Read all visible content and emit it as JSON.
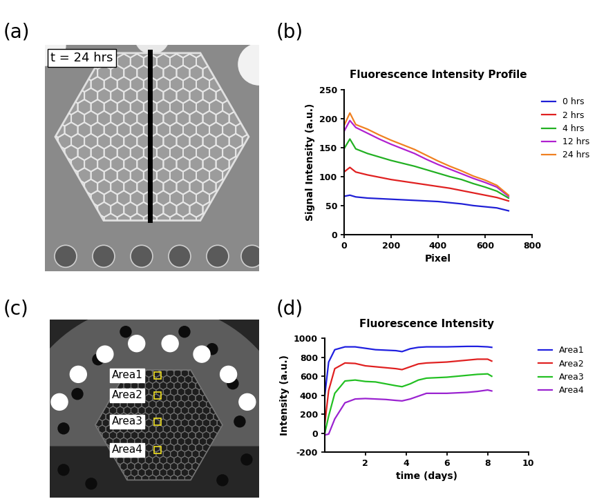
{
  "images": [
    {
      "panel": "(a)",
      "labels": [
        "t = 24 hrs"
      ]
    },
    {
      "panel": "(c)",
      "labels": [
        "Area1",
        "Area2",
        "Area3",
        "Area4"
      ]
    }
  ],
  "chart_data": [
    {
      "panel": "(b)",
      "type": "line",
      "title": "Fluorescence Intensity Profile",
      "x_label": "Pixel",
      "y_label": "Signal Intensity (a.u.)",
      "x": [
        0,
        25,
        50,
        100,
        150,
        200,
        250,
        300,
        350,
        400,
        450,
        500,
        550,
        600,
        650,
        700
      ],
      "xlim": [
        0,
        800
      ],
      "xticks": [
        0,
        200,
        400,
        600,
        800
      ],
      "ylim": [
        0,
        250
      ],
      "yticks": [
        0,
        50,
        100,
        150,
        200,
        250
      ],
      "series": [
        {
          "name": "0 hrs",
          "color": "#1f1fd6",
          "values": [
            66,
            68,
            65,
            63,
            62,
            61,
            60,
            59,
            58,
            57,
            55,
            53,
            50,
            48,
            46,
            41
          ]
        },
        {
          "name": "2 hrs",
          "color": "#e02020",
          "values": [
            108,
            116,
            108,
            103,
            99,
            95,
            92,
            89,
            86,
            83,
            80,
            76,
            72,
            68,
            64,
            58
          ]
        },
        {
          "name": "4 hrs",
          "color": "#22b022",
          "values": [
            148,
            165,
            148,
            140,
            134,
            128,
            123,
            118,
            112,
            106,
            100,
            95,
            88,
            82,
            75,
            63
          ]
        },
        {
          "name": "12 hrs",
          "color": "#b020d0",
          "values": [
            178,
            197,
            185,
            175,
            165,
            156,
            148,
            140,
            130,
            121,
            113,
            105,
            97,
            90,
            82,
            66
          ]
        },
        {
          "name": "24 hrs",
          "color": "#f08020",
          "values": [
            188,
            210,
            190,
            182,
            172,
            163,
            155,
            147,
            137,
            127,
            118,
            110,
            101,
            94,
            85,
            68
          ]
        }
      ]
    },
    {
      "panel": "(d)",
      "type": "line",
      "title": "Fluorescence Intensity",
      "x_label": "time (days)",
      "y_label": "Intensity (a.u.)",
      "x": [
        0,
        0.2,
        0.5,
        1,
        1.5,
        2,
        2.5,
        3,
        3.5,
        3.8,
        4.2,
        4.6,
        5,
        6,
        7,
        7.5,
        8,
        8.2
      ],
      "xlim": [
        0,
        10
      ],
      "xticks": [
        2,
        4,
        6,
        8,
        10
      ],
      "ylim": [
        -200,
        1000
      ],
      "yticks": [
        -200,
        0,
        200,
        400,
        600,
        800,
        1000
      ],
      "series": [
        {
          "name": "Area1",
          "color": "#1f1fe0",
          "values": [
            380,
            750,
            880,
            910,
            910,
            895,
            880,
            875,
            870,
            860,
            890,
            905,
            910,
            910,
            915,
            915,
            910,
            905
          ]
        },
        {
          "name": "Area2",
          "color": "#e02020",
          "values": [
            80,
            450,
            680,
            740,
            735,
            710,
            700,
            690,
            680,
            670,
            700,
            730,
            740,
            750,
            770,
            780,
            780,
            760
          ]
        },
        {
          "name": "Area3",
          "color": "#22c022",
          "values": [
            -10,
            180,
            420,
            550,
            560,
            545,
            540,
            520,
            500,
            490,
            520,
            560,
            580,
            590,
            610,
            620,
            625,
            600
          ]
        },
        {
          "name": "Area4",
          "color": "#9a22d0",
          "values": [
            -20,
            -10,
            150,
            320,
            360,
            365,
            360,
            355,
            345,
            340,
            360,
            390,
            420,
            420,
            430,
            440,
            455,
            445
          ]
        }
      ]
    }
  ]
}
